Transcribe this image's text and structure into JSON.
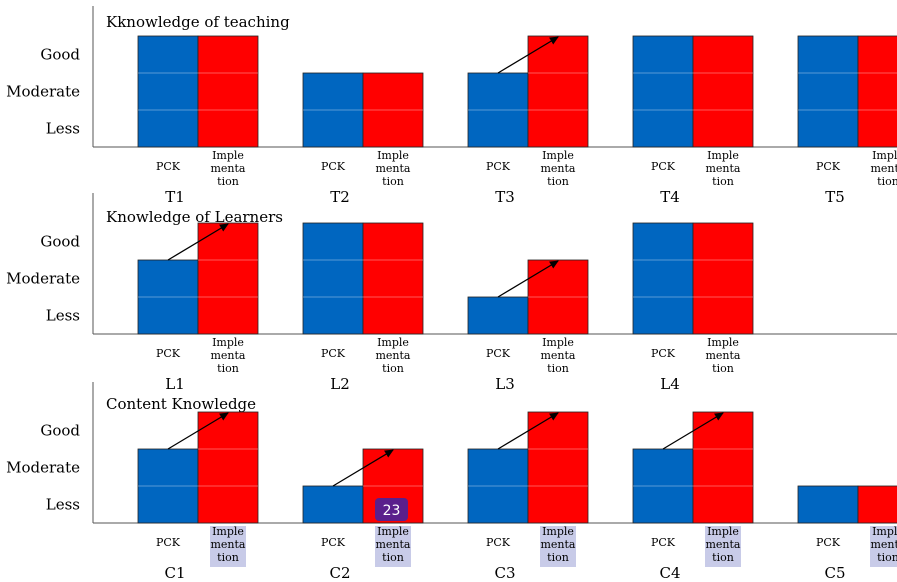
{
  "chart_data": [
    {
      "type": "bar",
      "title": "Kknowledge of teaching",
      "y_levels": [
        "Less",
        "Moderate",
        "Good"
      ],
      "bar_labels": [
        "PCK",
        "Imple\nmenta\ntion"
      ],
      "groups": [
        {
          "name": "T1",
          "pck": "Good",
          "implementation": "Good",
          "arrow": false
        },
        {
          "name": "T2",
          "pck": "Moderate",
          "implementation": "Moderate",
          "arrow": false
        },
        {
          "name": "T3",
          "pck": "Moderate",
          "implementation": "Good",
          "arrow": true
        },
        {
          "name": "T4",
          "pck": "Good",
          "implementation": "Good",
          "arrow": false
        },
        {
          "name": "T5",
          "pck": "Good",
          "implementation": "Good",
          "arrow": false
        }
      ]
    },
    {
      "type": "bar",
      "title": "Knowledge of Learners",
      "y_levels": [
        "Less",
        "Moderate",
        "Good"
      ],
      "bar_labels": [
        "PCK",
        "Imple\nmenta\ntion"
      ],
      "groups": [
        {
          "name": "L1",
          "pck": "Moderate",
          "implementation": "Good",
          "arrow": true
        },
        {
          "name": "L2",
          "pck": "Good",
          "implementation": "Good",
          "arrow": false
        },
        {
          "name": "L3",
          "pck": "Less",
          "implementation": "Moderate",
          "arrow": true
        },
        {
          "name": "L4",
          "pck": "Good",
          "implementation": "Good",
          "arrow": false
        }
      ]
    },
    {
      "type": "bar",
      "title": "Content Knowledge",
      "y_levels": [
        "Less",
        "Moderate",
        "Good"
      ],
      "bar_labels": [
        "PCK",
        "Imple\nmenta\ntion"
      ],
      "groups": [
        {
          "name": "C1",
          "pck": "Moderate",
          "implementation": "Good",
          "arrow": true
        },
        {
          "name": "C2",
          "pck": "Less",
          "implementation": "Moderate",
          "arrow": true
        },
        {
          "name": "C3",
          "pck": "Moderate",
          "implementation": "Good",
          "arrow": true
        },
        {
          "name": "C4",
          "pck": "Moderate",
          "implementation": "Good",
          "arrow": true
        },
        {
          "name": "C5",
          "pck": "Less",
          "implementation": "Less",
          "arrow": false
        }
      ]
    }
  ],
  "overlay_badge": "23",
  "colors": {
    "pck": "#0066c0",
    "implementation": "#ff0000",
    "highlight": "#c8cbe8",
    "badge": "#5a1f8c"
  }
}
